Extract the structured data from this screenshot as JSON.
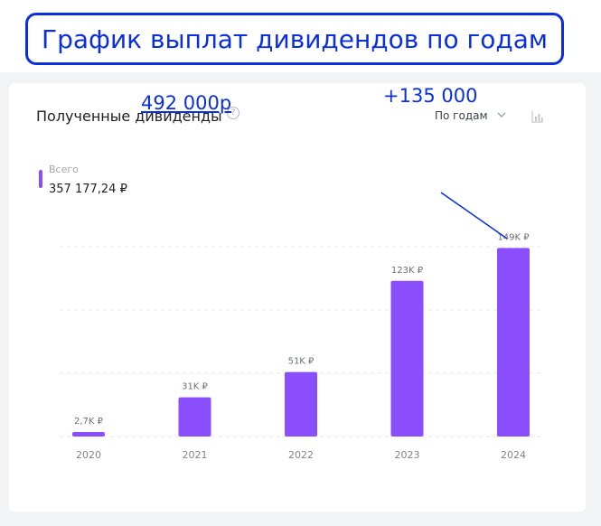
{
  "banner": {
    "title": "График выплат дивидендов по годам"
  },
  "card": {
    "title": "Полученные дивиденды",
    "help_glyph": "?",
    "period_label": "По годам",
    "total_label": "Всего",
    "total_value": "357 177,24 ₽"
  },
  "annotations": {
    "total": "492 000р",
    "growth": "+135 000"
  },
  "colors": {
    "bar": "#8b4efc",
    "annotation": "#0b2fe0"
  },
  "chart_data": {
    "type": "bar",
    "categories": [
      "2020",
      "2021",
      "2022",
      "2023",
      "2024"
    ],
    "values": [
      2700,
      31000,
      51000,
      123000,
      149000
    ],
    "value_labels": [
      "2,7K ₽",
      "31K ₽",
      "51K ₽",
      "123K ₽",
      "149K ₽"
    ],
    "title": "Полученные дивиденды",
    "xlabel": "",
    "ylabel": "",
    "ylim": [
      0,
      150000
    ],
    "grid": true,
    "legend": "none"
  }
}
